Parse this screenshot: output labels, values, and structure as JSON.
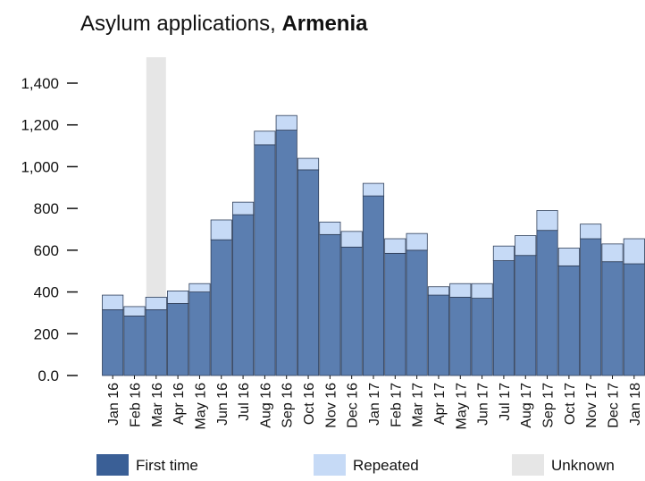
{
  "chart_data": {
    "type": "bar",
    "stacked": true,
    "title": "Asylum applications, ",
    "title_emphasis": "Armenia",
    "xlabel": "",
    "ylabel": "",
    "ylim": [
      0,
      1500
    ],
    "y_ticks": [
      {
        "value": 0,
        "label": "0.0"
      },
      {
        "value": 200,
        "label": "200"
      },
      {
        "value": 400,
        "label": "400"
      },
      {
        "value": 600,
        "label": "600"
      },
      {
        "value": 800,
        "label": "800"
      },
      {
        "value": 1000,
        "label": "1,000"
      },
      {
        "value": 1200,
        "label": "1,200"
      },
      {
        "value": 1400,
        "label": "1,400"
      }
    ],
    "categories": [
      "Jan 16",
      "Feb 16",
      "Mar 16",
      "Apr 16",
      "May 16",
      "Jun 16",
      "Jul 16",
      "Aug 16",
      "Sep 16",
      "Oct 16",
      "Nov 16",
      "Dec 16",
      "Jan 17",
      "Feb 17",
      "Mar 17",
      "Apr 17",
      "May 17",
      "Jun 17",
      "Jul 17",
      "Aug 17",
      "Sep 17",
      "Oct 17",
      "Nov 17",
      "Dec 17",
      "Jan 18"
    ],
    "series": [
      {
        "name": "First time",
        "color": "#5b7eb0",
        "values": [
          315,
          285,
          315,
          345,
          400,
          650,
          770,
          1105,
          1175,
          985,
          675,
          615,
          860,
          585,
          600,
          385,
          375,
          370,
          550,
          575,
          695,
          525,
          655,
          545,
          535
        ]
      },
      {
        "name": "Repeated",
        "color": "#c6daf6",
        "values": [
          70,
          45,
          60,
          60,
          40,
          95,
          60,
          65,
          70,
          55,
          60,
          75,
          60,
          70,
          80,
          40,
          65,
          70,
          70,
          95,
          95,
          85,
          70,
          85,
          120
        ]
      }
    ],
    "unknown_highlight": {
      "name": "Unknown",
      "color": "#e6e6e6",
      "category": "Mar 16"
    },
    "grid": false,
    "legend_position": "bottom"
  }
}
